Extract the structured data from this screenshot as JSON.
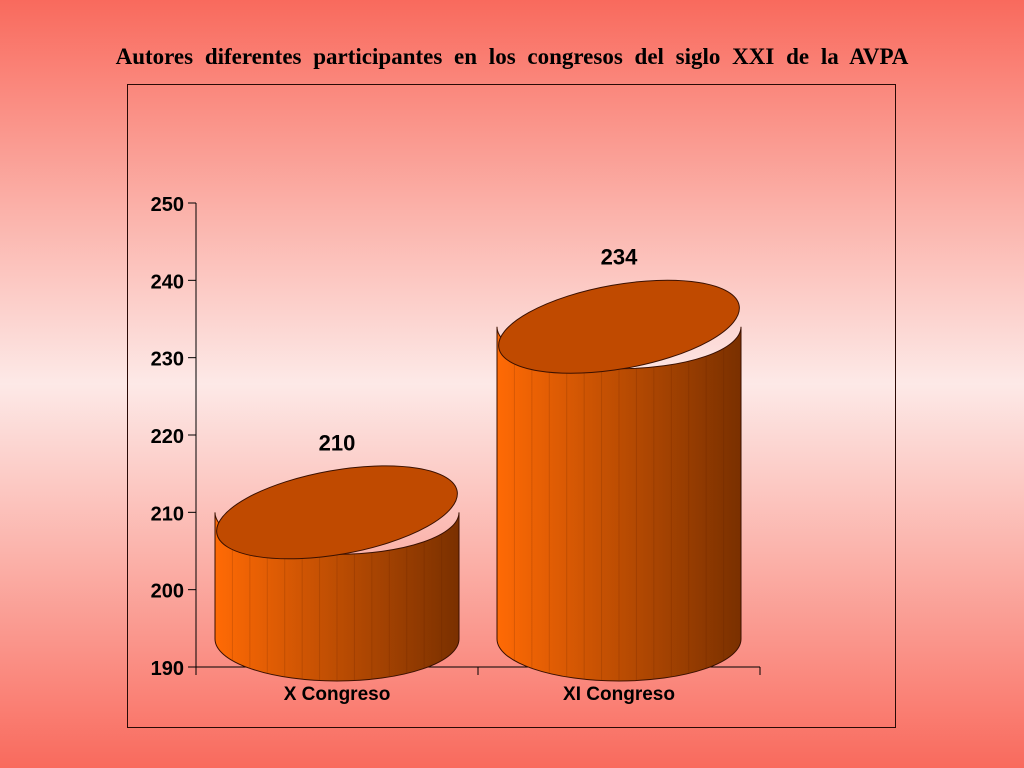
{
  "slide": {
    "title": "Autores diferentes participantes  en  los  congresos  del  siglo  XXI  de  la   AVPA"
  },
  "colors": {
    "cylinder_light": "#ff6a05",
    "cylinder_dark": "#7a3000",
    "cylinder_top": "#c04a00",
    "outline": "#3a1000"
  },
  "chart_data": {
    "type": "bar",
    "style": "3d-cylinder",
    "categories": [
      "X Congreso",
      "XI Congreso"
    ],
    "values": [
      210,
      234
    ],
    "data_labels": [
      "210",
      "234"
    ],
    "yticks": [
      "190",
      "200",
      "210",
      "220",
      "230",
      "240",
      "250"
    ],
    "ylim": [
      190,
      250
    ],
    "title": "",
    "xlabel": "",
    "ylabel": "",
    "grid": false,
    "legend": "none"
  }
}
